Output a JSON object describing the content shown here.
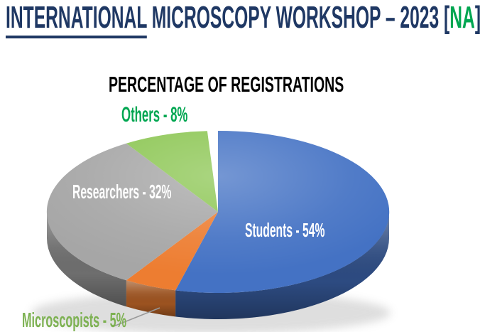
{
  "header": {
    "title_part_underlined": "INTERNATIONAL",
    "title_part_main": " MICROSCOPY WORKSHOP – 2023 ",
    "bracket_open": "[",
    "title_part_highlight": "NA",
    "bracket_close": "]",
    "title_color": "#1F3864",
    "highlight_color": "#00A651"
  },
  "chart_data": {
    "type": "pie",
    "style": "3d",
    "title": "PERCENTAGE OF REGISTRATIONS",
    "start_angle_deg": 0,
    "direction": "clockwise",
    "legend": "none",
    "slices": [
      {
        "label": "Students",
        "value_pct": 54,
        "color": "#4472C4",
        "callout": "Students - 54%",
        "callout_color": "#FFFFFF"
      },
      {
        "label": "Microscopists",
        "value_pct": 5,
        "color": "#ED7D31",
        "callout": "Microscopists - 5%",
        "callout_color": "#7DB152"
      },
      {
        "label": "Researchers",
        "value_pct": 32,
        "color": "#A6A6A6",
        "callout": "Researchers - 32%",
        "callout_color": "#FFFFFF"
      },
      {
        "label": "Others",
        "value_pct": 8,
        "color": "#8CC653",
        "callout": "Others - 8%",
        "callout_color": "#00A651"
      }
    ],
    "leader_line_color": "#999999"
  }
}
